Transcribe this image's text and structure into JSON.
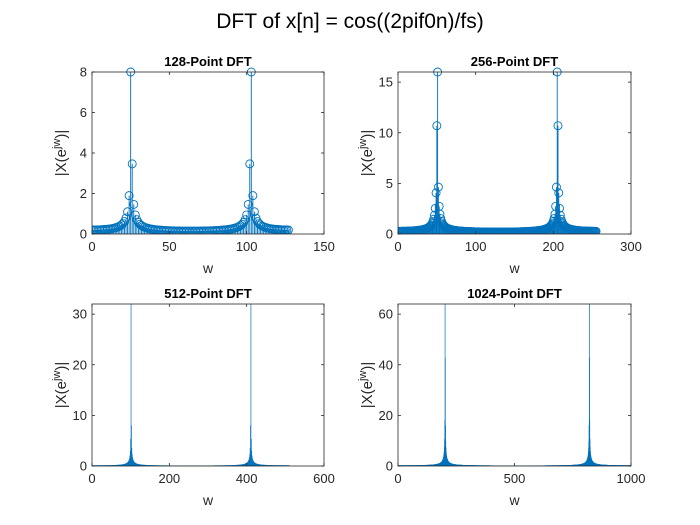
{
  "figure": {
    "title": "DFT of x[n] = cos((2pif0n)/fs)",
    "stem_color": "#0072BD"
  },
  "chart_data": [
    {
      "type": "stem",
      "title": "128-Point DFT",
      "xlabel": "w",
      "ylabel": "|X(e^jw)|",
      "ylabel_base": "|X(e",
      "ylabel_sup": "jw",
      "ylabel_tail": ")|",
      "N": 128,
      "peak_index": 25,
      "peak_value": 8,
      "markers": true,
      "xlim": [
        0,
        150
      ],
      "ylim": [
        0,
        8
      ],
      "xticks": [
        0,
        50,
        100,
        150
      ],
      "yticks": [
        0,
        2,
        4,
        6,
        8
      ]
    },
    {
      "type": "stem",
      "title": "256-Point DFT",
      "xlabel": "w",
      "ylabel": "|X(e^jw)|",
      "ylabel_base": "|X(e",
      "ylabel_sup": "jw",
      "ylabel_tail": ")|",
      "N": 256,
      "peak_index": 50,
      "peak_value": 16,
      "markers": true,
      "xlim": [
        0,
        300
      ],
      "ylim": [
        0,
        16
      ],
      "xticks": [
        0,
        100,
        200,
        300
      ],
      "yticks": [
        0,
        5,
        10,
        15
      ]
    },
    {
      "type": "stem",
      "title": "512-Point DFT",
      "xlabel": "w",
      "ylabel": "|X(e^jw)|",
      "ylabel_base": "|X(e",
      "ylabel_sup": "jw",
      "ylabel_tail": ")|",
      "N": 512,
      "peak_index": 100,
      "peak_value": 32,
      "markers": false,
      "xlim": [
        0,
        600
      ],
      "ylim": [
        0,
        32
      ],
      "xticks": [
        0,
        200,
        400,
        600
      ],
      "yticks": [
        0,
        10,
        20,
        30
      ]
    },
    {
      "type": "stem",
      "title": "1024-Point DFT",
      "xlabel": "w",
      "ylabel": "|X(e^jw)|",
      "ylabel_base": "|X(e",
      "ylabel_sup": "jw",
      "ylabel_tail": ")|",
      "N": 1024,
      "peak_index": 200,
      "peak_value": 64,
      "markers": false,
      "xlim": [
        0,
        1000
      ],
      "ylim": [
        0,
        64
      ],
      "xticks": [
        0,
        500,
        1000
      ],
      "yticks": [
        0,
        20,
        40,
        60
      ]
    }
  ]
}
